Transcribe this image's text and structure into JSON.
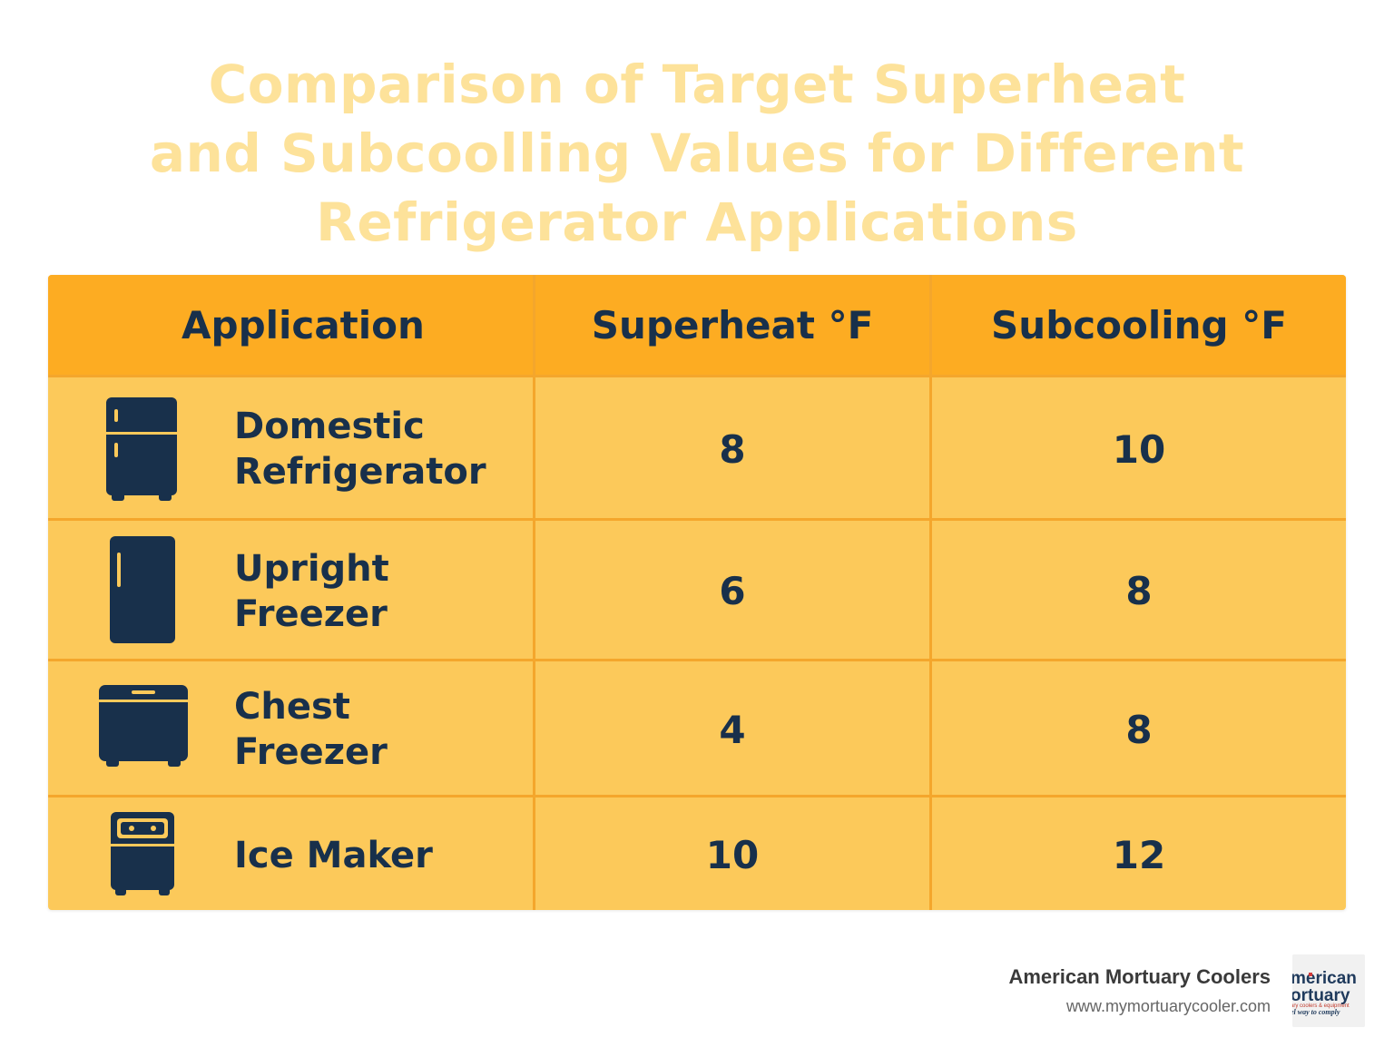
{
  "title_lines": [
    "Comparison of Target Superheat",
    "and Subcoolling Values for Different",
    "Refrigerator Applications"
  ],
  "table": {
    "headers": [
      "Application",
      "Superheat °F",
      "Subcooling °F"
    ],
    "rows": [
      {
        "application": "Domestic\nRefrigerator",
        "icon": "refrigerator-icon",
        "superheat": "8",
        "subcooling": "10"
      },
      {
        "application": "Upright\nFreezer",
        "icon": "upright-freezer-icon",
        "superheat": "6",
        "subcooling": "8"
      },
      {
        "application": "Chest\nFreezer",
        "icon": "chest-freezer-icon",
        "superheat": "4",
        "subcooling": "8"
      },
      {
        "application": "Ice Maker",
        "icon": "ice-maker-icon",
        "superheat": "10",
        "subcooling": "12"
      }
    ]
  },
  "footer": {
    "company": "American Mortuary Coolers",
    "url": "www.mymortuarycooler.com"
  },
  "logo": {
    "line1": "merican",
    "line2": "ortuary",
    "line3": "ary coolers & equipment",
    "line4": "el way to comply"
  },
  "colors": {
    "header_bg": "#fdac22",
    "row_bg": "#fcc95a",
    "text": "#18304b",
    "title": "#fde29a"
  }
}
